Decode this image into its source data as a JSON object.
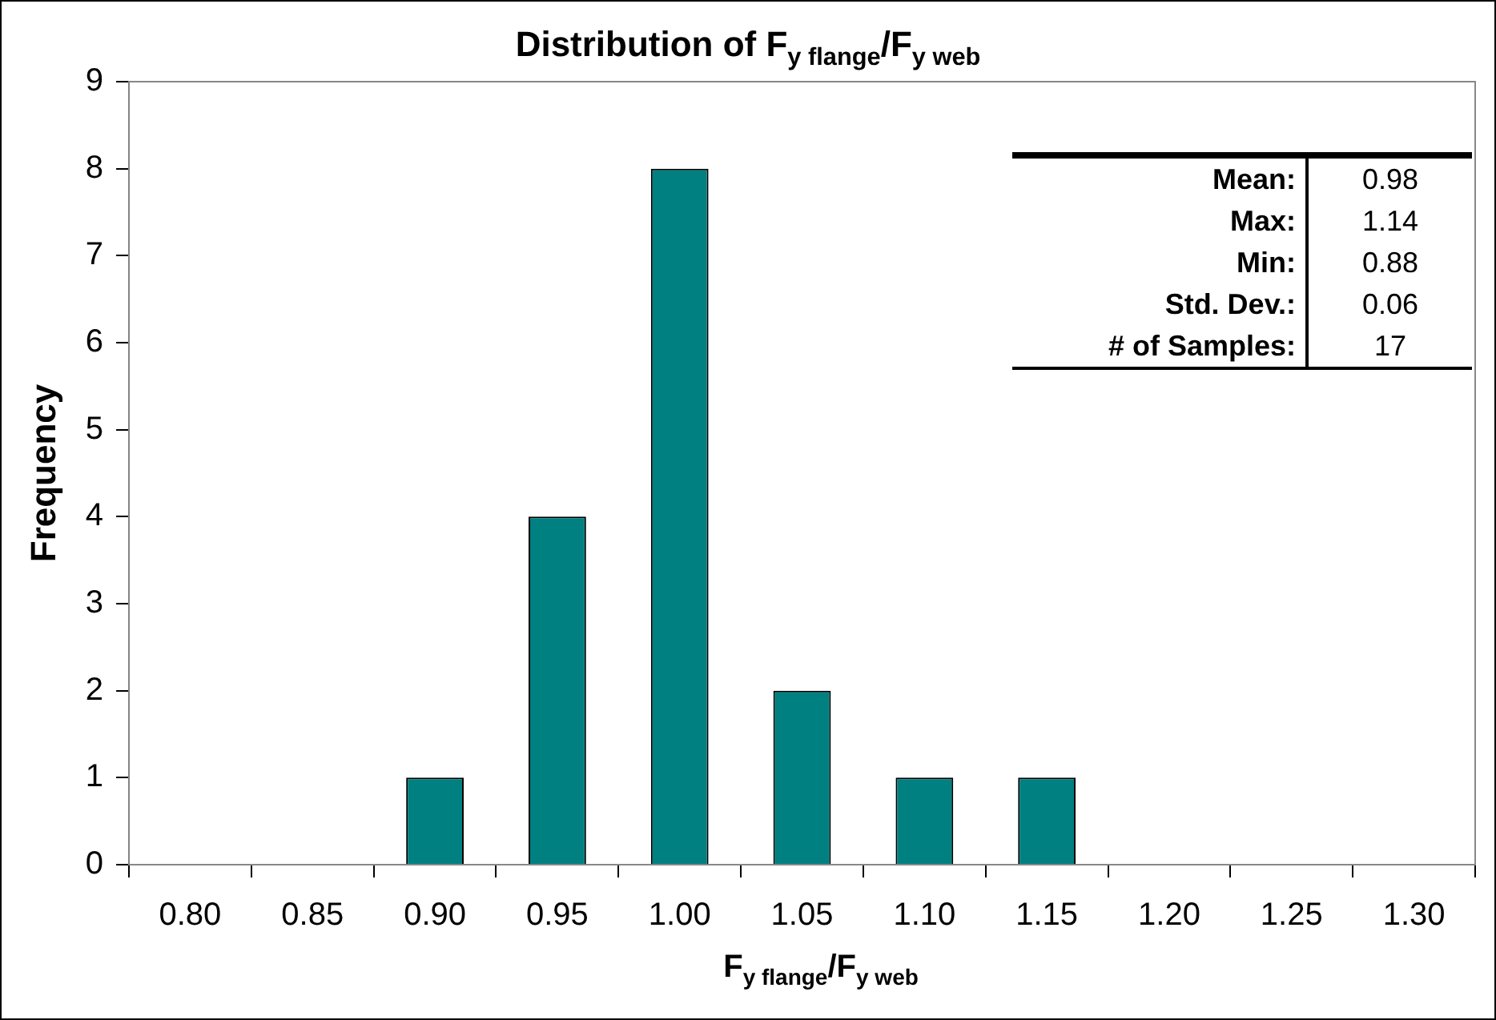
{
  "chart_data": {
    "type": "bar",
    "title": "Distribution of F$_{y flange}$/F$_{y web}$",
    "xlabel": "F$_{y flange}$/F$_{y web}$",
    "ylabel": "Frequency",
    "categories": [
      "0.80",
      "0.85",
      "0.90",
      "0.95",
      "1.00",
      "1.05",
      "1.10",
      "1.15",
      "1.20",
      "1.25",
      "1.30"
    ],
    "values": [
      0,
      0,
      1,
      4,
      8,
      2,
      1,
      1,
      0,
      0,
      0
    ],
    "color": "#008080",
    "ylim": [
      0,
      9
    ],
    "yticks": [
      0,
      1,
      2,
      3,
      4,
      5,
      6,
      7,
      8,
      9
    ],
    "grid": false,
    "legend": false,
    "annotations": [
      "Mean:",
      "0.98",
      "Max:",
      "1.14",
      "Min:",
      "0.88",
      "Std. Dev.:",
      "0.06",
      "# of Samples:",
      "17"
    ]
  }
}
